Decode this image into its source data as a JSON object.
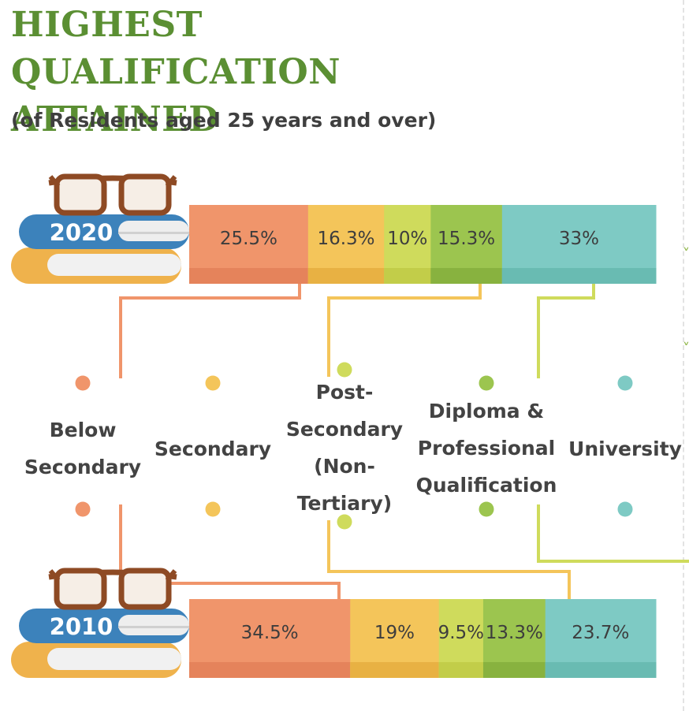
{
  "title": "HIGHEST QUALIFICATION\nATTAINED",
  "subtitle": "(of Residents aged 25 years and over)",
  "chart_data": {
    "type": "bar",
    "orientation": "horizontal",
    "stacked": true,
    "percent_stacked": true,
    "title": "HIGHEST QUALIFICATION ATTAINED",
    "subtitle": "(of Residents aged 25 years and over)",
    "categories": [
      "2020",
      "2010"
    ],
    "series": [
      {
        "name": "Below Secondary",
        "display": "Below\nSecondary",
        "color": "#f0956b",
        "shade": "#e5835b",
        "values": [
          25.5,
          34.5
        ],
        "labels": [
          "25.5%",
          "34.5%"
        ]
      },
      {
        "name": "Secondary",
        "display": "Secondary",
        "color": "#f4c55a",
        "shade": "#e8b143",
        "values": [
          16.3,
          19
        ],
        "labels": [
          "16.3%",
          "19%"
        ]
      },
      {
        "name": "Post-Secondary (Non-Tertiary)",
        "display": "Post-\nSecondary\n(Non-\nTertiary)",
        "color": "#cfdb5c",
        "shade": "#c2cd49",
        "values": [
          10,
          9.5
        ],
        "labels": [
          "10%",
          "9.5%"
        ]
      },
      {
        "name": "Diploma & Professional Qualification",
        "display": "Diploma &\nProfessional\nQualification",
        "color": "#9cc54f",
        "shade": "#88b23f",
        "values": [
          15.3,
          13.3
        ],
        "labels": [
          "15.3%",
          "13.3%"
        ]
      },
      {
        "name": "University",
        "display": "University",
        "color": "#7ecac4",
        "shade": "#69bbb2",
        "values": [
          33,
          23.7
        ],
        "labels": [
          "33%",
          "23.7%"
        ]
      }
    ]
  }
}
